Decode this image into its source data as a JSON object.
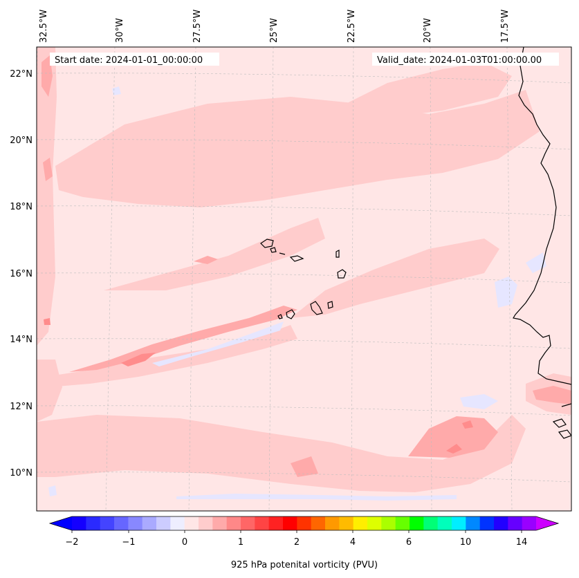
{
  "map": {
    "start_date": "Start date: 2024-01-01_00:00:00",
    "valid_date": "Valid_date: 2024-01-03T01:00:00.00",
    "lon_labels": [
      "32.5°W",
      "30°W",
      "27.5°W",
      "25°W",
      "22.5°W",
      "20°W",
      "17.5°W"
    ],
    "lat_labels": [
      "22°N",
      "20°N",
      "18°N",
      "16°N",
      "14°N",
      "12°N",
      "10°N"
    ],
    "field": "925 hPa potential vorticity",
    "colors": {
      "background": "#ffe6e6",
      "light_pink": "#ffcccc",
      "mid_pink": "#ffaaaa",
      "rose": "#ff8c8c",
      "pale_blue": "#e6e6ff",
      "coast": "#000000"
    }
  },
  "colorbar": {
    "label": "925 hPa potenital vorticity (PVU)",
    "ticks": [
      "−2",
      "−1",
      "0",
      "1",
      "2",
      "4",
      "6",
      "10",
      "14"
    ],
    "colors": [
      "#1400ff",
      "#2a2aff",
      "#4444ff",
      "#6666ff",
      "#8888ff",
      "#aaaaff",
      "#ccccff",
      "#eeeeff",
      "#ffe6e6",
      "#ffcccc",
      "#ffaaaa",
      "#ff8888",
      "#ff6666",
      "#ff4444",
      "#ff2222",
      "#ff0000",
      "#ff3300",
      "#ff6600",
      "#ff9900",
      "#ffbb00",
      "#ffee00",
      "#ddff00",
      "#aaff00",
      "#66ff00",
      "#00ff00",
      "#00ff77",
      "#00ffbb",
      "#00eeff",
      "#0088ff",
      "#0033ff",
      "#2200ff",
      "#6600ff",
      "#9900ff"
    ],
    "extend_min_color": "#0000ff",
    "extend_max_color": "#cc00ff"
  }
}
